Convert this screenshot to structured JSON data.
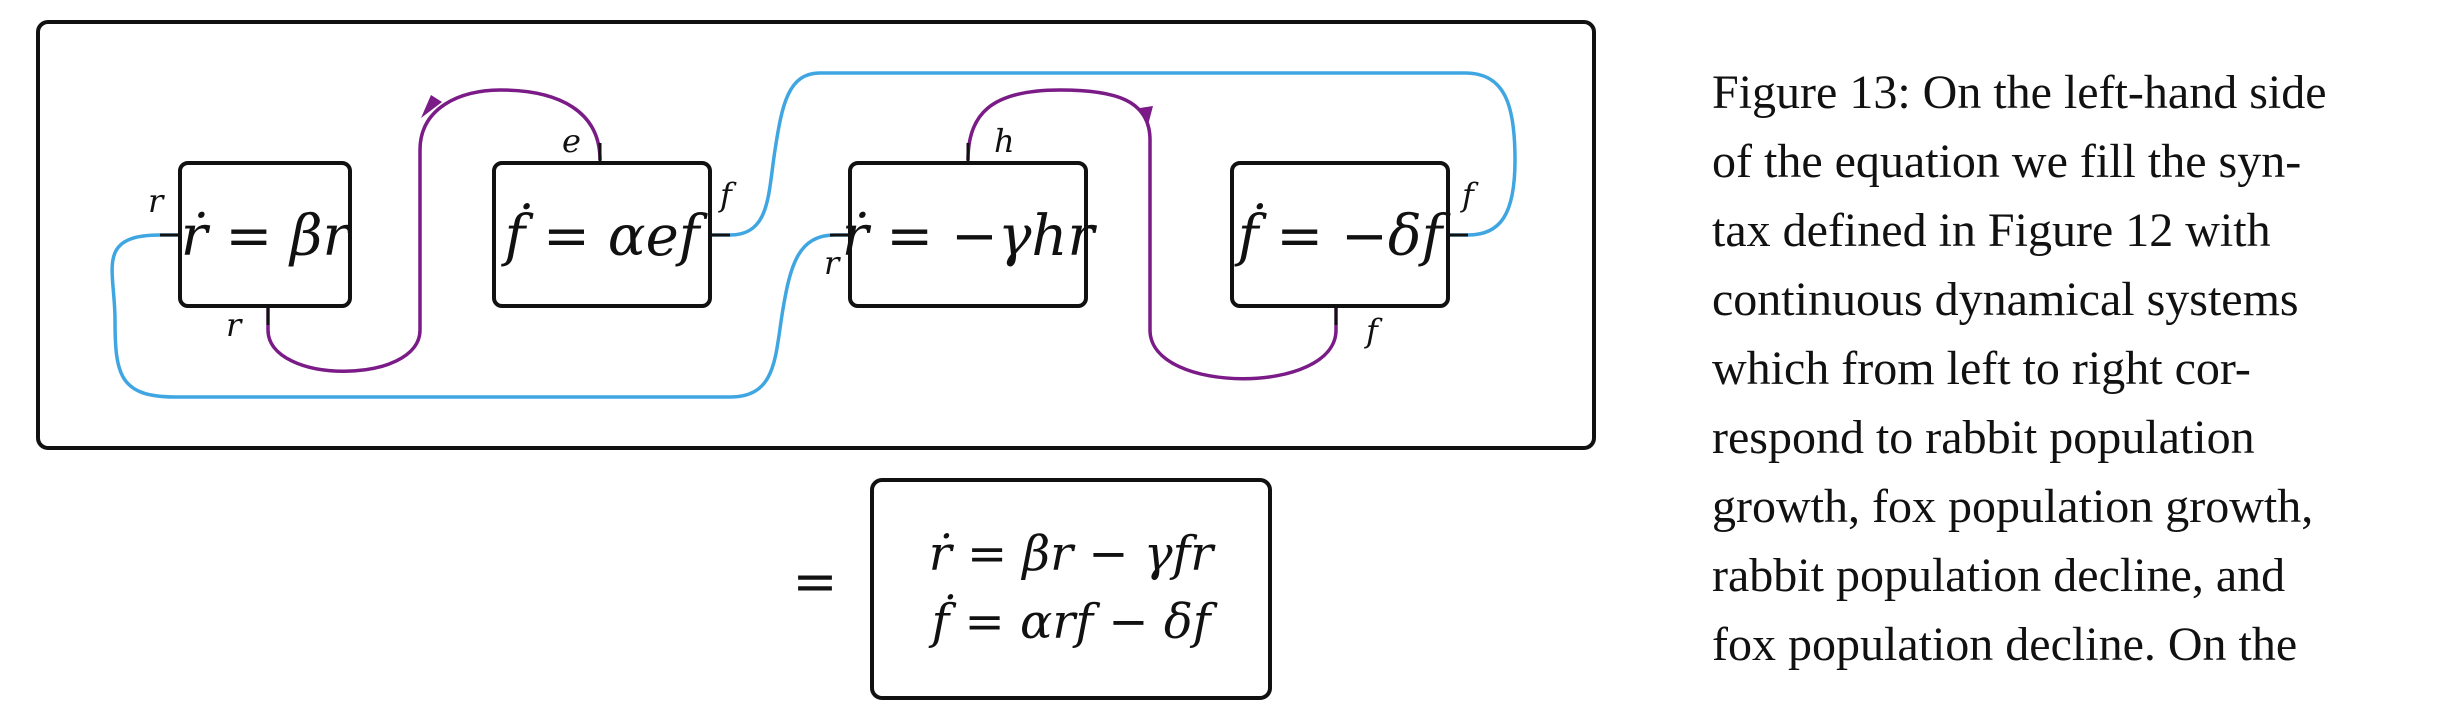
{
  "figure": {
    "boxes": [
      {
        "id": "rabbit-growth",
        "equation": "ṙ = βr",
        "ports": [
          "r",
          "r"
        ]
      },
      {
        "id": "fox-growth",
        "equation": "ḟ = αef",
        "ports": [
          "e",
          "f"
        ]
      },
      {
        "id": "rabbit-decline",
        "equation": "ṙ = −γhr",
        "ports": [
          "h",
          "r"
        ]
      },
      {
        "id": "fox-decline",
        "equation": "ḟ = −δf",
        "ports": [
          "f",
          "f"
        ]
      }
    ],
    "equals_sign": "=",
    "result": {
      "line1": "ṙ = βr − γfr",
      "line2": "ḟ = αrf − δf"
    },
    "colors": {
      "rabbit_wire": "#3fa6e2",
      "fox_wire": "#7a1b87",
      "ink": "#111111"
    }
  },
  "caption": {
    "lines": [
      "Figure 13: On the left-hand side",
      "of the equation we fill the syn-",
      "tax defined in Figure 12 with",
      "continuous dynamical systems",
      "which from left to right cor-",
      "respond to rabbit population",
      "growth, fox population growth,",
      "rabbit population decline, and",
      "fox population decline. On the"
    ]
  }
}
